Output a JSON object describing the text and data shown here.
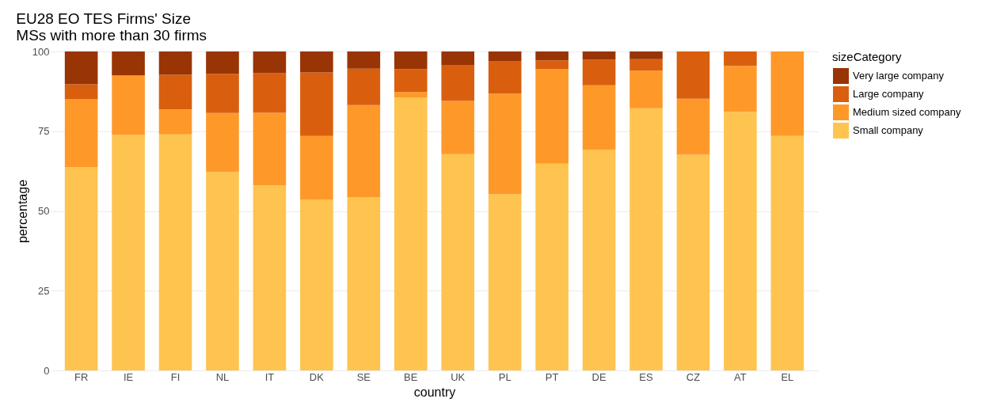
{
  "chart_data": {
    "type": "bar",
    "stacked": true,
    "title": "EU28 EO TES Firms' Size",
    "subtitle": "MSs with more than 30 firms",
    "xlabel": "country",
    "ylabel": "percentage",
    "legend_title": "sizeCategory",
    "categories": [
      "FR",
      "IE",
      "FI",
      "NL",
      "IT",
      "DK",
      "SE",
      "BE",
      "UK",
      "PL",
      "PT",
      "DE",
      "ES",
      "CZ",
      "AT",
      "EL"
    ],
    "series": [
      {
        "name": "Small company",
        "color": "#fec44f",
        "values": [
          63.8,
          73.8,
          74,
          62.2,
          58,
          53.5,
          54.2,
          85.6,
          67.8,
          55.2,
          64.8,
          69.2,
          82.2,
          67.6,
          81.1,
          73.5
        ]
      },
      {
        "name": "Medium sized company",
        "color": "#fe9929",
        "values": [
          21.2,
          18.7,
          7.8,
          18.5,
          22.8,
          20,
          29,
          1.7,
          16.7,
          31.6,
          29.6,
          20.2,
          11.8,
          17.6,
          14.4,
          26.5
        ]
      },
      {
        "name": "Large company",
        "color": "#d95f0e",
        "values": [
          4.7,
          0,
          10.9,
          12.3,
          12.4,
          19.9,
          11.4,
          7.2,
          11.3,
          10.2,
          2.8,
          8,
          3.6,
          14.8,
          4.5,
          0
        ]
      },
      {
        "name": "Very large company",
        "color": "#993404",
        "values": [
          10.3,
          7.5,
          7.3,
          7,
          6.8,
          6.6,
          5.4,
          5.5,
          4.2,
          3,
          2.8,
          2.6,
          2.4,
          0,
          0,
          0
        ]
      }
    ],
    "ylim": [
      0,
      100
    ],
    "yticks": [
      0,
      25,
      50,
      75,
      100
    ],
    "grid": true,
    "legend": "right"
  }
}
